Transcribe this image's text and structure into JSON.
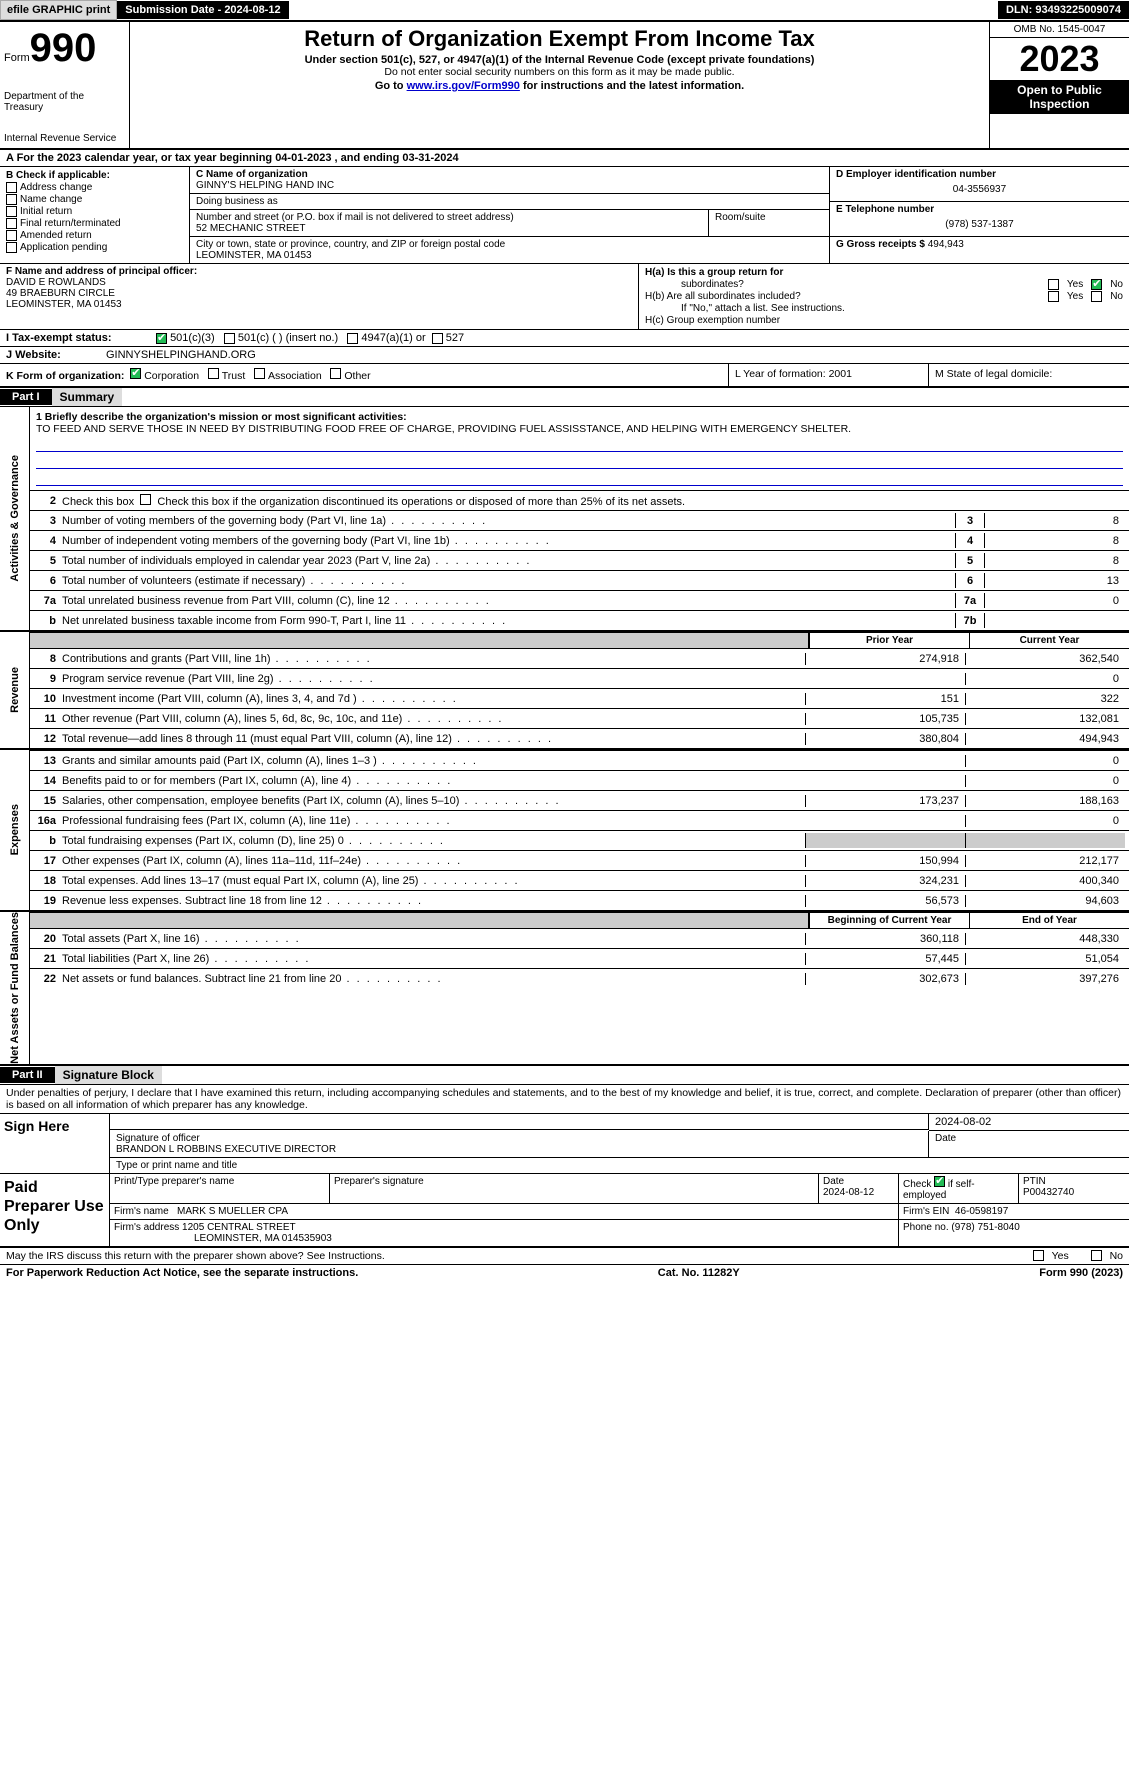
{
  "topbar": {
    "efile": "efile GRAPHIC print",
    "submission": "Submission Date - 2024-08-12",
    "dln": "DLN: 93493225009074"
  },
  "header": {
    "form_label": "Form",
    "form_num": "990",
    "dept": "Department of the Treasury",
    "irs": "Internal Revenue Service",
    "title": "Return of Organization Exempt From Income Tax",
    "sub1": "Under section 501(c), 527, or 4947(a)(1) of the Internal Revenue Code (except private foundations)",
    "sub2": "Do not enter social security numbers on this form as it may be made public.",
    "sub3_pre": "Go to ",
    "sub3_link": "www.irs.gov/Form990",
    "sub3_post": " for instructions and the latest information.",
    "omb": "OMB No. 1545-0047",
    "year": "2023",
    "open": "Open to Public Inspection"
  },
  "row_a": "A  For the 2023 calendar year, or tax year beginning 04-01-2023    , and ending 03-31-2024",
  "col_b": {
    "title": "B Check if applicable:",
    "items": [
      "Address change",
      "Name change",
      "Initial return",
      "Final return/terminated",
      "Amended return",
      "Application pending"
    ]
  },
  "c": {
    "name_lbl": "C Name of organization",
    "name": "GINNY'S HELPING HAND INC",
    "dba_lbl": "Doing business as",
    "dba": "",
    "street_lbl": "Number and street (or P.O. box if mail is not delivered to street address)",
    "street": "52 MECHANIC STREET",
    "room_lbl": "Room/suite",
    "city_lbl": "City or town, state or province, country, and ZIP or foreign postal code",
    "city": "LEOMINSTER, MA  01453"
  },
  "d": {
    "lbl": "D Employer identification number",
    "val": "04-3556937"
  },
  "e": {
    "lbl": "E Telephone number",
    "val": "(978) 537-1387"
  },
  "g": {
    "lbl": "G Gross receipts $",
    "val": "494,943"
  },
  "f": {
    "lbl": "F  Name and address of principal officer:",
    "line1": "DAVID E ROWLANDS",
    "line2": "49 BRAEBURN CIRCLE",
    "line3": "LEOMINSTER, MA  01453"
  },
  "h": {
    "a": "H(a)  Is this a group return for",
    "a2": "subordinates?",
    "b": "H(b)  Are all subordinates included?",
    "bnote": "If \"No,\" attach a list. See instructions.",
    "c": "H(c)  Group exemption number"
  },
  "i": {
    "lbl": "I    Tax-exempt status:",
    "o1": "501(c)(3)",
    "o2": "501(c) (  ) (insert no.)",
    "o3": "4947(a)(1) or",
    "o4": "527"
  },
  "j": {
    "lbl": "J    Website:",
    "val": "GINNYSHELPINGHAND.ORG"
  },
  "k": {
    "lbl": "K Form of organization:",
    "o1": "Corporation",
    "o2": "Trust",
    "o3": "Association",
    "o4": "Other",
    "l": "L Year of formation: 2001",
    "m": "M State of legal domicile:"
  },
  "part1": {
    "hdr": "Part I",
    "title": "Summary"
  },
  "gov": {
    "label": "Activities & Governance",
    "l1a": "1  Briefly describe the organization's mission or most significant activities:",
    "l1b": "TO FEED AND SERVE THOSE IN NEED BY DISTRIBUTING FOOD FREE OF CHARGE, PROVIDING FUEL ASSISSTANCE, AND HELPING WITH EMERGENCY SHELTER.",
    "l2": "Check this box       if the organization discontinued its operations or disposed of more than 25% of its net assets.",
    "rows": [
      {
        "n": "3",
        "t": "Number of voting members of the governing body (Part VI, line 1a)",
        "num": "3",
        "v": "8"
      },
      {
        "n": "4",
        "t": "Number of independent voting members of the governing body (Part VI, line 1b)",
        "num": "4",
        "v": "8"
      },
      {
        "n": "5",
        "t": "Total number of individuals employed in calendar year 2023 (Part V, line 2a)",
        "num": "5",
        "v": "8"
      },
      {
        "n": "6",
        "t": "Total number of volunteers (estimate if necessary)",
        "num": "6",
        "v": "13"
      },
      {
        "n": "7a",
        "t": "Total unrelated business revenue from Part VIII, column (C), line 12",
        "num": "7a",
        "v": "0"
      },
      {
        "n": "b",
        "t": "Net unrelated business taxable income from Form 990-T, Part I, line 11",
        "num": "7b",
        "v": ""
      }
    ]
  },
  "rev": {
    "label": "Revenue",
    "col1": "Prior Year",
    "col2": "Current Year",
    "rows": [
      {
        "n": "8",
        "t": "Contributions and grants (Part VIII, line 1h)",
        "c1": "274,918",
        "c2": "362,540"
      },
      {
        "n": "9",
        "t": "Program service revenue (Part VIII, line 2g)",
        "c1": "",
        "c2": "0"
      },
      {
        "n": "10",
        "t": "Investment income (Part VIII, column (A), lines 3, 4, and 7d )",
        "c1": "151",
        "c2": "322"
      },
      {
        "n": "11",
        "t": "Other revenue (Part VIII, column (A), lines 5, 6d, 8c, 9c, 10c, and 11e)",
        "c1": "105,735",
        "c2": "132,081"
      },
      {
        "n": "12",
        "t": "Total revenue—add lines 8 through 11 (must equal Part VIII, column (A), line 12)",
        "c1": "380,804",
        "c2": "494,943"
      }
    ]
  },
  "exp": {
    "label": "Expenses",
    "rows": [
      {
        "n": "13",
        "t": "Grants and similar amounts paid (Part IX, column (A), lines 1–3 )",
        "c1": "",
        "c2": "0"
      },
      {
        "n": "14",
        "t": "Benefits paid to or for members (Part IX, column (A), line 4)",
        "c1": "",
        "c2": "0"
      },
      {
        "n": "15",
        "t": "Salaries, other compensation, employee benefits (Part IX, column (A), lines 5–10)",
        "c1": "173,237",
        "c2": "188,163"
      },
      {
        "n": "16a",
        "t": "Professional fundraising fees (Part IX, column (A), line 11e)",
        "c1": "",
        "c2": "0"
      },
      {
        "n": "b",
        "t": "Total fundraising expenses (Part IX, column (D), line 25) 0",
        "c1": "grey",
        "c2": "grey"
      },
      {
        "n": "17",
        "t": "Other expenses (Part IX, column (A), lines 11a–11d, 11f–24e)",
        "c1": "150,994",
        "c2": "212,177"
      },
      {
        "n": "18",
        "t": "Total expenses. Add lines 13–17 (must equal Part IX, column (A), line 25)",
        "c1": "324,231",
        "c2": "400,340"
      },
      {
        "n": "19",
        "t": "Revenue less expenses. Subtract line 18 from line 12",
        "c1": "56,573",
        "c2": "94,603"
      }
    ]
  },
  "na": {
    "label": "Net Assets or Fund Balances",
    "col1": "Beginning of Current Year",
    "col2": "End of Year",
    "rows": [
      {
        "n": "20",
        "t": "Total assets (Part X, line 16)",
        "c1": "360,118",
        "c2": "448,330"
      },
      {
        "n": "21",
        "t": "Total liabilities (Part X, line 26)",
        "c1": "57,445",
        "c2": "51,054"
      },
      {
        "n": "22",
        "t": "Net assets or fund balances. Subtract line 21 from line 20",
        "c1": "302,673",
        "c2": "397,276"
      }
    ]
  },
  "part2": {
    "hdr": "Part II",
    "title": "Signature Block"
  },
  "perjury": "Under penalties of perjury, I declare that I have examined this return, including accompanying schedules and statements, and to the best of my knowledge and belief, it is true, correct, and complete. Declaration of preparer (other than officer) is based on all information of which preparer has any knowledge.",
  "sign": {
    "here": "Sign Here",
    "sig_lbl": "Signature of officer",
    "name": "BRANDON L ROBBINS  EXECUTIVE DIRECTOR",
    "type_lbl": "Type or print name and title",
    "date_lbl": "Date",
    "date": "2024-08-02"
  },
  "paid": {
    "lbl": "Paid Preparer Use Only",
    "r1": {
      "c1": "Print/Type preparer's name",
      "c2": "Preparer's signature",
      "c3": "Date",
      "c3v": "2024-08-12",
      "c4": "Check        if self-employed",
      "c5": "PTIN",
      "c5v": "P00432740"
    },
    "r2": {
      "c1": "Firm's name",
      "c1v": "MARK S MUELLER CPA",
      "c2": "Firm's EIN",
      "c2v": "46-0598197"
    },
    "r3": {
      "c1": "Firm's address",
      "c1v": "1205 CENTRAL STREET",
      "c2": "Phone no.",
      "c2v": "(978) 751-8040"
    },
    "r3b": "LEOMINSTER, MA  014535903"
  },
  "discuss": "May the IRS discuss this return with the preparer shown above? See Instructions.",
  "footer": {
    "l": "For Paperwork Reduction Act Notice, see the separate instructions.",
    "m": "Cat. No. 11282Y",
    "r": "Form 990 (2023)"
  },
  "yn": {
    "yes": "Yes",
    "no": "No"
  }
}
